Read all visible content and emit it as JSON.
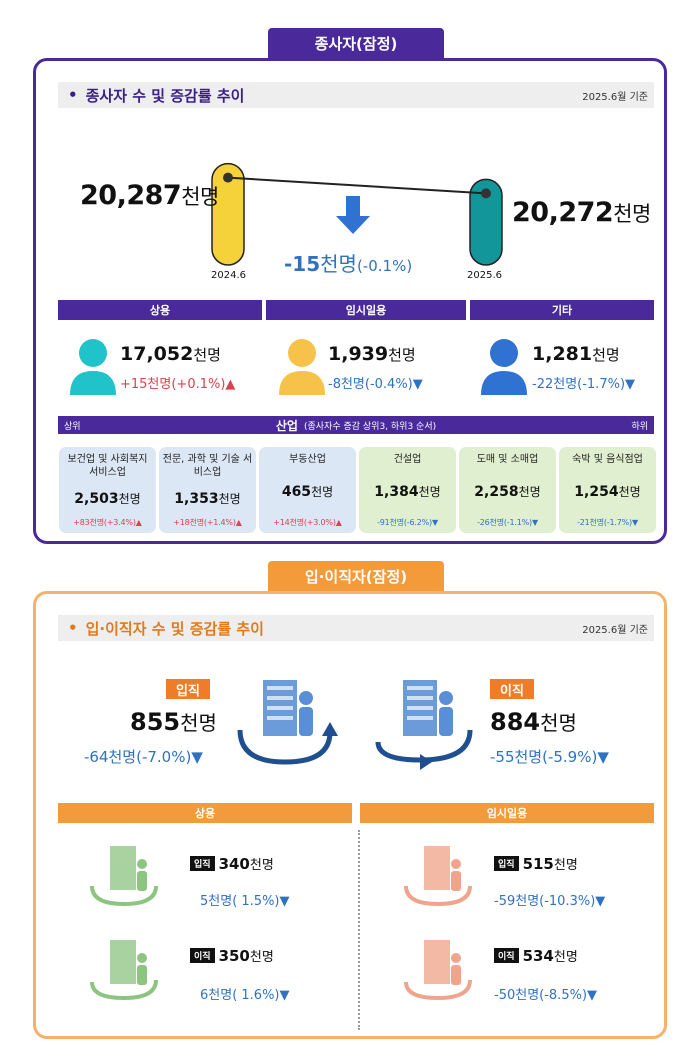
{
  "employees": {
    "tab_label": "종사자(잠정)",
    "title": "종사자 수 및 증감률 추이",
    "basis": "2025.6월 기준",
    "prev_value": "20,287",
    "curr_value": "20,272",
    "unit": "천명",
    "prev_label": "2024.6",
    "curr_label": "2025.6",
    "change_value": "-15",
    "change_unit": "천명",
    "change_rate": "(-0.1%)",
    "categories": [
      {
        "label": "상용",
        "value": "17,052",
        "unit": "천명",
        "change": "+15천명(+0.1%)",
        "direction": "up"
      },
      {
        "label": "임시일용",
        "value": "1,939",
        "unit": "천명",
        "change": "-8천명(-0.4%)",
        "direction": "down"
      },
      {
        "label": "기타",
        "value": "1,281",
        "unit": "천명",
        "change": "-22천명(-1.7%)",
        "direction": "down"
      }
    ],
    "industry": {
      "label_left": "상위",
      "title": "산업",
      "subtitle": "(종사자수 증감 상위3, 하위3 순서)",
      "label_right": "하위",
      "items": [
        {
          "name": "보건업 및 사회복지 서비스업",
          "value": "2,503",
          "unit": "천명",
          "change": "+83천명(+3.4%)",
          "direction": "up"
        },
        {
          "name": "전문, 과학 및 기술 서비스업",
          "value": "1,353",
          "unit": "천명",
          "change": "+18천명(+1.4%)",
          "direction": "up"
        },
        {
          "name": "부동산업",
          "value": "465",
          "unit": "천명",
          "change": "+14천명(+3.0%)",
          "direction": "up"
        },
        {
          "name": "건설업",
          "value": "1,384",
          "unit": "천명",
          "change": "-91천명(-6.2%)",
          "direction": "down"
        },
        {
          "name": "도매 및 소매업",
          "value": "2,258",
          "unit": "천명",
          "change": "-26천명(-1.1%)",
          "direction": "down"
        },
        {
          "name": "숙박 및 음식점업",
          "value": "1,254",
          "unit": "천명",
          "change": "-21천명(-1.7%)",
          "direction": "down"
        }
      ]
    }
  },
  "turnover": {
    "tab_label": "입·이직자(잠정)",
    "title": "입·이직자 수 및 증감률 추이",
    "basis": "2025.6월 기준",
    "hires": {
      "label": "입직",
      "value": "855",
      "unit": "천명",
      "change": "-64천명(-7.0%)",
      "direction": "down"
    },
    "separations": {
      "label": "이직",
      "value": "884",
      "unit": "천명",
      "change": "-55천명(-5.9%)",
      "direction": "down"
    },
    "regular": {
      "label": "상용",
      "hires": {
        "label": "입직",
        "value": "340",
        "unit": "천명",
        "change": "5천명( 1.5%)",
        "direction": "down"
      },
      "separations": {
        "label": "이직",
        "value": "350",
        "unit": "천명",
        "change": "6천명( 1.6%)",
        "direction": "down"
      }
    },
    "temporary": {
      "label": "임시일용",
      "hires": {
        "label": "입직",
        "value": "515",
        "unit": "천명",
        "change": "-59천명(-10.3%)",
        "direction": "down"
      },
      "separations": {
        "label": "이직",
        "value": "534",
        "unit": "천명",
        "change": "-50천명(-8.5%)",
        "direction": "down"
      }
    }
  },
  "colors": {
    "purple": "#4a2a9a",
    "orange": "#f39a3a",
    "yellow_bar": "#f6d23a",
    "teal_bar": "#12969a",
    "change_blue": "#2f72c2",
    "change_red": "#d9424e",
    "person_regular": "#1fc3c9",
    "person_temp": "#f7c24a",
    "person_other": "#2f72d2"
  },
  "chart_data": {
    "type": "bar",
    "categories": [
      "2024.6",
      "2025.6"
    ],
    "values": [
      20287,
      20272
    ],
    "ylabel": "천명",
    "ylim": [
      20200,
      20300
    ]
  }
}
